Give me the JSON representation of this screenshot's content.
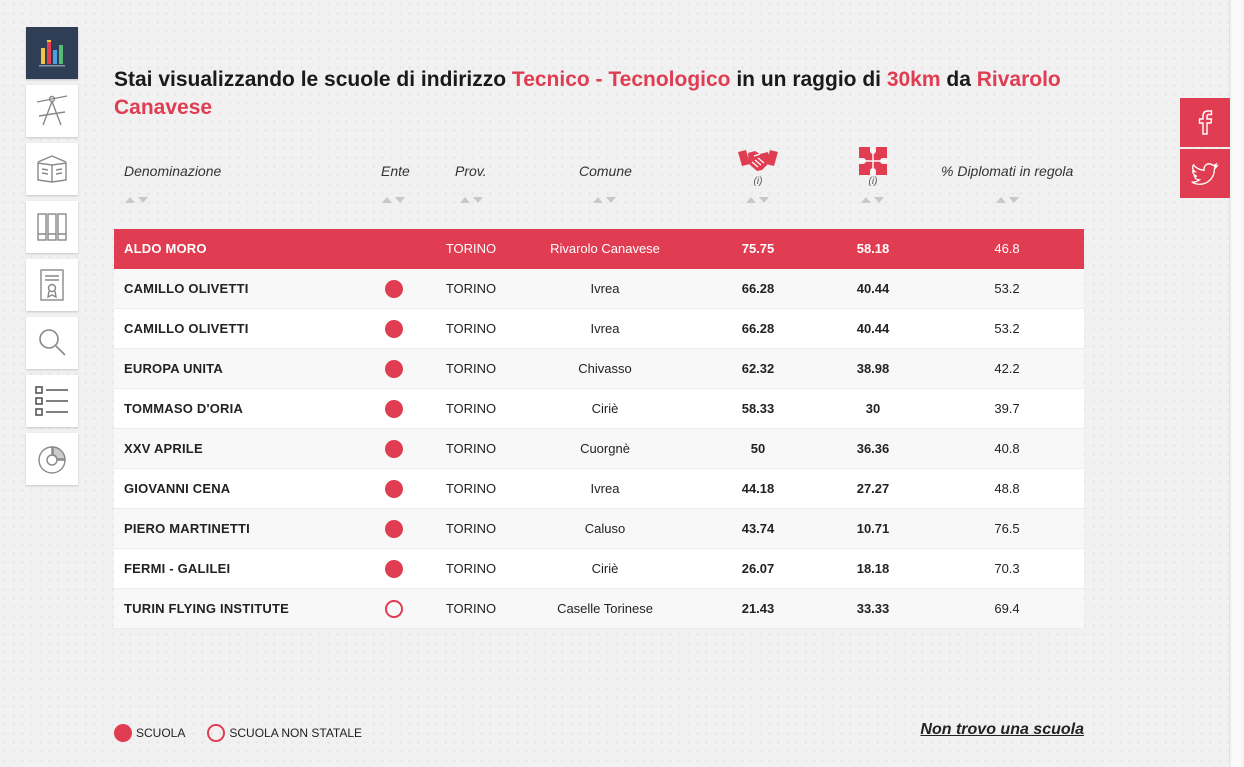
{
  "heading": {
    "prefix": "Stai visualizzando le scuole di indirizzo ",
    "indirizzo": "Tecnico - Tecnologico",
    "middle": " in un raggio di ",
    "raggio": "30km",
    "connector": " da ",
    "localita": "Rivarolo Canavese"
  },
  "sidebar": {
    "items": [
      {
        "name": "sidebar-item-stats",
        "icon": "bar-chart-icon",
        "active": true
      },
      {
        "name": "sidebar-item-indirizzo",
        "icon": "compass-icon",
        "active": false
      },
      {
        "name": "sidebar-item-didattica",
        "icon": "open-book-icon",
        "active": false
      },
      {
        "name": "sidebar-item-biblioteca",
        "icon": "books-icon",
        "active": false
      },
      {
        "name": "sidebar-item-diploma",
        "icon": "certificate-icon",
        "active": false
      },
      {
        "name": "sidebar-item-ricerca",
        "icon": "magnifier-icon",
        "active": false
      },
      {
        "name": "sidebar-item-elenco",
        "icon": "checklist-icon",
        "active": false
      },
      {
        "name": "sidebar-item-grafici",
        "icon": "pie-chart-icon",
        "active": false
      }
    ]
  },
  "social": {
    "facebook": "facebook-icon",
    "twitter": "twitter-icon"
  },
  "table": {
    "headers": {
      "denominazione": "Denominazione",
      "ente": "Ente",
      "prov": "Prov.",
      "comune": "Comune",
      "col_v1_icon": "handshake-icon",
      "col_v1_info": "(i)",
      "col_v2_icon": "puzzle-icon",
      "col_v2_info": "(i)",
      "diplomati": "% Diplomati in regola"
    },
    "rows": [
      {
        "name": "ALDO MORO",
        "ente": "none",
        "prov": "TORINO",
        "comune": "Rivarolo Canavese",
        "v1": "75.75",
        "v2": "58.18",
        "v3": "46.8",
        "highlight": true
      },
      {
        "name": "CAMILLO OLIVETTI",
        "ente": "filled",
        "prov": "TORINO",
        "comune": "Ivrea",
        "v1": "66.28",
        "v2": "40.44",
        "v3": "53.2"
      },
      {
        "name": "CAMILLO OLIVETTI",
        "ente": "filled",
        "prov": "TORINO",
        "comune": "Ivrea",
        "v1": "66.28",
        "v2": "40.44",
        "v3": "53.2"
      },
      {
        "name": "EUROPA UNITA",
        "ente": "filled",
        "prov": "TORINO",
        "comune": "Chivasso",
        "v1": "62.32",
        "v2": "38.98",
        "v3": "42.2"
      },
      {
        "name": "TOMMASO D'ORIA",
        "ente": "filled",
        "prov": "TORINO",
        "comune": "Ciriè",
        "v1": "58.33",
        "v2": "30",
        "v3": "39.7"
      },
      {
        "name": "XXV APRILE",
        "ente": "filled",
        "prov": "TORINO",
        "comune": "Cuorgnè",
        "v1": "50",
        "v2": "36.36",
        "v3": "40.8"
      },
      {
        "name": "GIOVANNI CENA",
        "ente": "filled",
        "prov": "TORINO",
        "comune": "Ivrea",
        "v1": "44.18",
        "v2": "27.27",
        "v3": "48.8"
      },
      {
        "name": "PIERO MARTINETTI",
        "ente": "filled",
        "prov": "TORINO",
        "comune": "Caluso",
        "v1": "43.74",
        "v2": "10.71",
        "v3": "76.5"
      },
      {
        "name": "FERMI - GALILEI",
        "ente": "filled",
        "prov": "TORINO",
        "comune": "Ciriè",
        "v1": "26.07",
        "v2": "18.18",
        "v3": "70.3"
      },
      {
        "name": "TURIN FLYING INSTITUTE",
        "ente": "hollow",
        "prov": "TORINO",
        "comune": "Caselle Torinese",
        "v1": "21.43",
        "v2": "33.33",
        "v3": "69.4"
      }
    ]
  },
  "legend": {
    "scuola": "SCUOLA",
    "non_statale": "SCUOLA NON STATALE"
  },
  "not_found": "Non trovo una scuola",
  "colors": {
    "accent": "#e03c52",
    "sidebar_active": "#2f3e55"
  }
}
